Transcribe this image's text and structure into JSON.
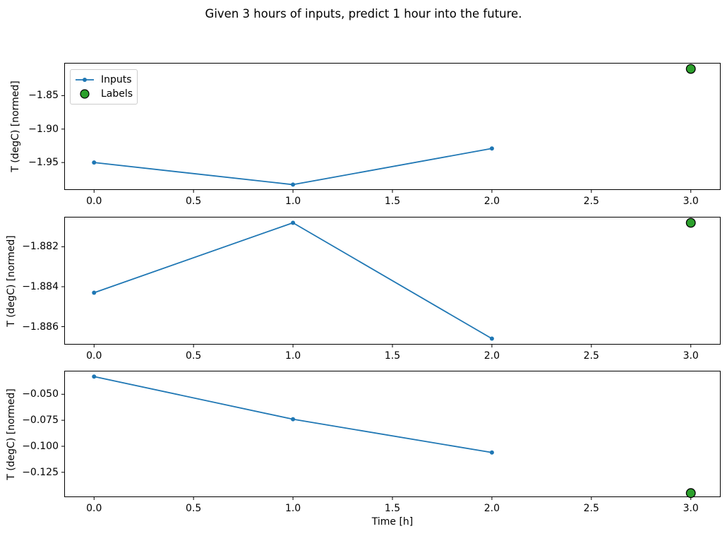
{
  "figure": {
    "title": "Given 3 hours of inputs, predict 1 hour into the future.",
    "background": "#ffffff"
  },
  "legend": {
    "items": [
      {
        "label": "Inputs",
        "kind": "line-with-dot-marker",
        "color": "#1f77b4"
      },
      {
        "label": "Labels",
        "kind": "filled-circle",
        "color": "#2ca02c",
        "edge_color": "#000000"
      }
    ]
  },
  "colors": {
    "inputs_line": "#1f77b4",
    "labels_marker": "#2ca02c",
    "labels_marker_edge": "#000000",
    "spine": "#000000",
    "text": "#000000",
    "legend_border": "#cccccc"
  },
  "chart_data": [
    {
      "type": "line",
      "title": "",
      "xlabel": "",
      "ylabel": "T (degC) [normed]",
      "x": [
        0,
        1,
        2
      ],
      "series": [
        {
          "name": "Inputs",
          "values": [
            -1.95,
            -1.983,
            -1.929
          ]
        }
      ],
      "labels_point": {
        "name": "Labels",
        "x": 3,
        "y": -1.81
      },
      "xlim": [
        -0.15,
        3.15
      ],
      "ylim": [
        -1.991,
        -1.801
      ],
      "xticks": [
        0.0,
        0.5,
        1.0,
        1.5,
        2.0,
        2.5,
        3.0
      ],
      "yticks": [
        -1.85,
        -1.9,
        -1.95
      ],
      "xtick_decimals": 1,
      "ytick_decimals": 2,
      "grid": false,
      "legend_position": "upper left"
    },
    {
      "type": "line",
      "title": "",
      "xlabel": "",
      "ylabel": "T (degC) [normed]",
      "x": [
        0,
        1,
        2
      ],
      "series": [
        {
          "name": "Inputs",
          "values": [
            -1.8843,
            -1.8808,
            -1.8866
          ]
        }
      ],
      "labels_point": {
        "name": "Labels",
        "x": 3,
        "y": -1.8808
      },
      "xlim": [
        -0.15,
        3.15
      ],
      "ylim": [
        -1.8869,
        -1.8805
      ],
      "xticks": [
        0.0,
        0.5,
        1.0,
        1.5,
        2.0,
        2.5,
        3.0
      ],
      "yticks": [
        -1.882,
        -1.884,
        -1.886
      ],
      "xtick_decimals": 1,
      "ytick_decimals": 3,
      "grid": false,
      "legend_position": "none"
    },
    {
      "type": "line",
      "title": "",
      "xlabel": "Time [h]",
      "ylabel": "T (degC) [normed]",
      "x": [
        0,
        1,
        2
      ],
      "series": [
        {
          "name": "Inputs",
          "values": [
            -0.033,
            -0.074,
            -0.106
          ]
        }
      ],
      "labels_point": {
        "name": "Labels",
        "x": 3,
        "y": -0.145
      },
      "xlim": [
        -0.15,
        3.15
      ],
      "ylim": [
        -0.1489,
        -0.0274
      ],
      "xticks": [
        0.0,
        0.5,
        1.0,
        1.5,
        2.0,
        2.5,
        3.0
      ],
      "yticks": [
        -0.05,
        -0.075,
        -0.1,
        -0.125
      ],
      "xtick_decimals": 1,
      "ytick_decimals": 3,
      "grid": false,
      "legend_position": "none"
    }
  ]
}
